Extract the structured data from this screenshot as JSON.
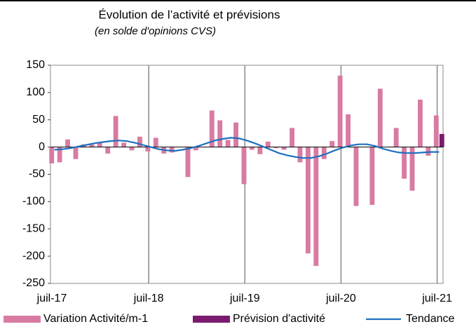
{
  "chart_data": {
    "type": "bar",
    "title": "Évolution de l’activité et prévisions",
    "subtitle": "(en solde d'opinions CVS)",
    "categories": [
      "juil-17",
      null,
      null,
      null,
      null,
      null,
      null,
      null,
      null,
      null,
      null,
      null,
      "juil-18",
      null,
      null,
      null,
      null,
      null,
      null,
      null,
      null,
      null,
      null,
      null,
      "juil-19",
      null,
      null,
      null,
      null,
      null,
      null,
      null,
      null,
      null,
      null,
      null,
      "juil-20",
      null,
      null,
      null,
      null,
      null,
      null,
      null,
      null,
      null,
      null,
      null,
      "juil-21"
    ],
    "series": [
      {
        "name": "Variation Activité/m-1",
        "color": "#d87ba2",
        "kind": "bar",
        "values": [
          -30,
          -28,
          14,
          -22,
          5,
          5,
          8,
          -12,
          57,
          8,
          -6,
          19,
          -8,
          17,
          -12,
          -10,
          0,
          -55,
          -6,
          0,
          67,
          49,
          13,
          45,
          -68,
          -5,
          -13,
          10,
          -2,
          -5,
          35,
          -28,
          -195,
          -218,
          -22,
          11,
          131,
          60,
          -108,
          0,
          -106,
          107,
          0,
          35,
          -58,
          -80,
          87,
          -16,
          58
        ]
      },
      {
        "name": "Prévision d'activité",
        "color": "#7a1b6f",
        "kind": "bar",
        "values": [
          null,
          null,
          null,
          null,
          null,
          null,
          null,
          null,
          null,
          null,
          null,
          null,
          null,
          null,
          null,
          null,
          null,
          null,
          null,
          null,
          null,
          null,
          null,
          null,
          null,
          null,
          null,
          null,
          null,
          null,
          null,
          null,
          null,
          null,
          null,
          null,
          null,
          null,
          null,
          null,
          null,
          null,
          null,
          null,
          null,
          null,
          null,
          null,
          24
        ]
      },
      {
        "name": "Tendance",
        "color": "#1f6fbf",
        "kind": "line",
        "values": [
          -5,
          -4,
          -2,
          1,
          4,
          7,
          9,
          11,
          12,
          11,
          8,
          4,
          0,
          -4,
          -6,
          -7,
          -5,
          -2,
          2,
          7,
          12,
          15,
          17,
          16,
          12,
          7,
          1,
          -5,
          -11,
          -15,
          -18,
          -20,
          -20,
          -17,
          -12,
          -6,
          -1,
          3,
          5,
          5,
          2,
          -3,
          -7,
          -10,
          -11,
          -11,
          -10,
          -9,
          -9
        ]
      }
    ],
    "ylim": [
      -250,
      150
    ],
    "yticks": [
      -250,
      -200,
      -150,
      -100,
      -50,
      0,
      50,
      100,
      150
    ]
  }
}
